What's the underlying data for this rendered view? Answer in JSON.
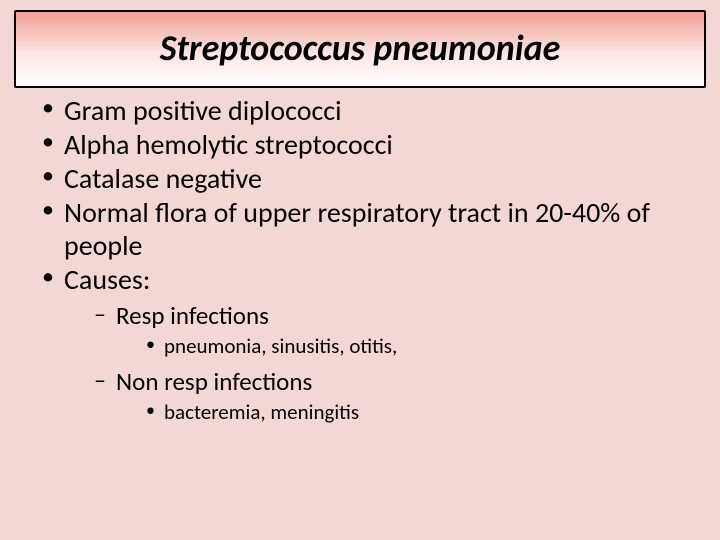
{
  "colors": {
    "slide_background": "#f2d8d4",
    "title_gradient_top": "#f19e95",
    "title_gradient_mid": "#fbe5e2",
    "title_gradient_bottom": "#ffffff",
    "title_border": "#000000",
    "text_color": "#000000"
  },
  "typography": {
    "title_fontsize_pt": 36,
    "title_style": "bold italic",
    "lvl1_fontsize_pt": 28,
    "lvl2_fontsize_pt": 25,
    "lvl3_fontsize_pt": 21,
    "font_family": "Calibri"
  },
  "title": "Streptococcus pneumoniae",
  "bullets": {
    "b0": "Gram positive diplococci",
    "b1": "Alpha hemolytic streptococci",
    "b2": "Catalase negative",
    "b3": "Normal flora of upper respiratory tract in 20-40% of people",
    "b4": "Causes:",
    "b4_sub": {
      "s0": "Resp infections",
      "s0_sub": {
        "t0": "pneumonia, sinusitis, otitis,"
      },
      "s1": "Non resp infections",
      "s1_sub": {
        "t0": "bacteremia, meningitis"
      }
    }
  }
}
